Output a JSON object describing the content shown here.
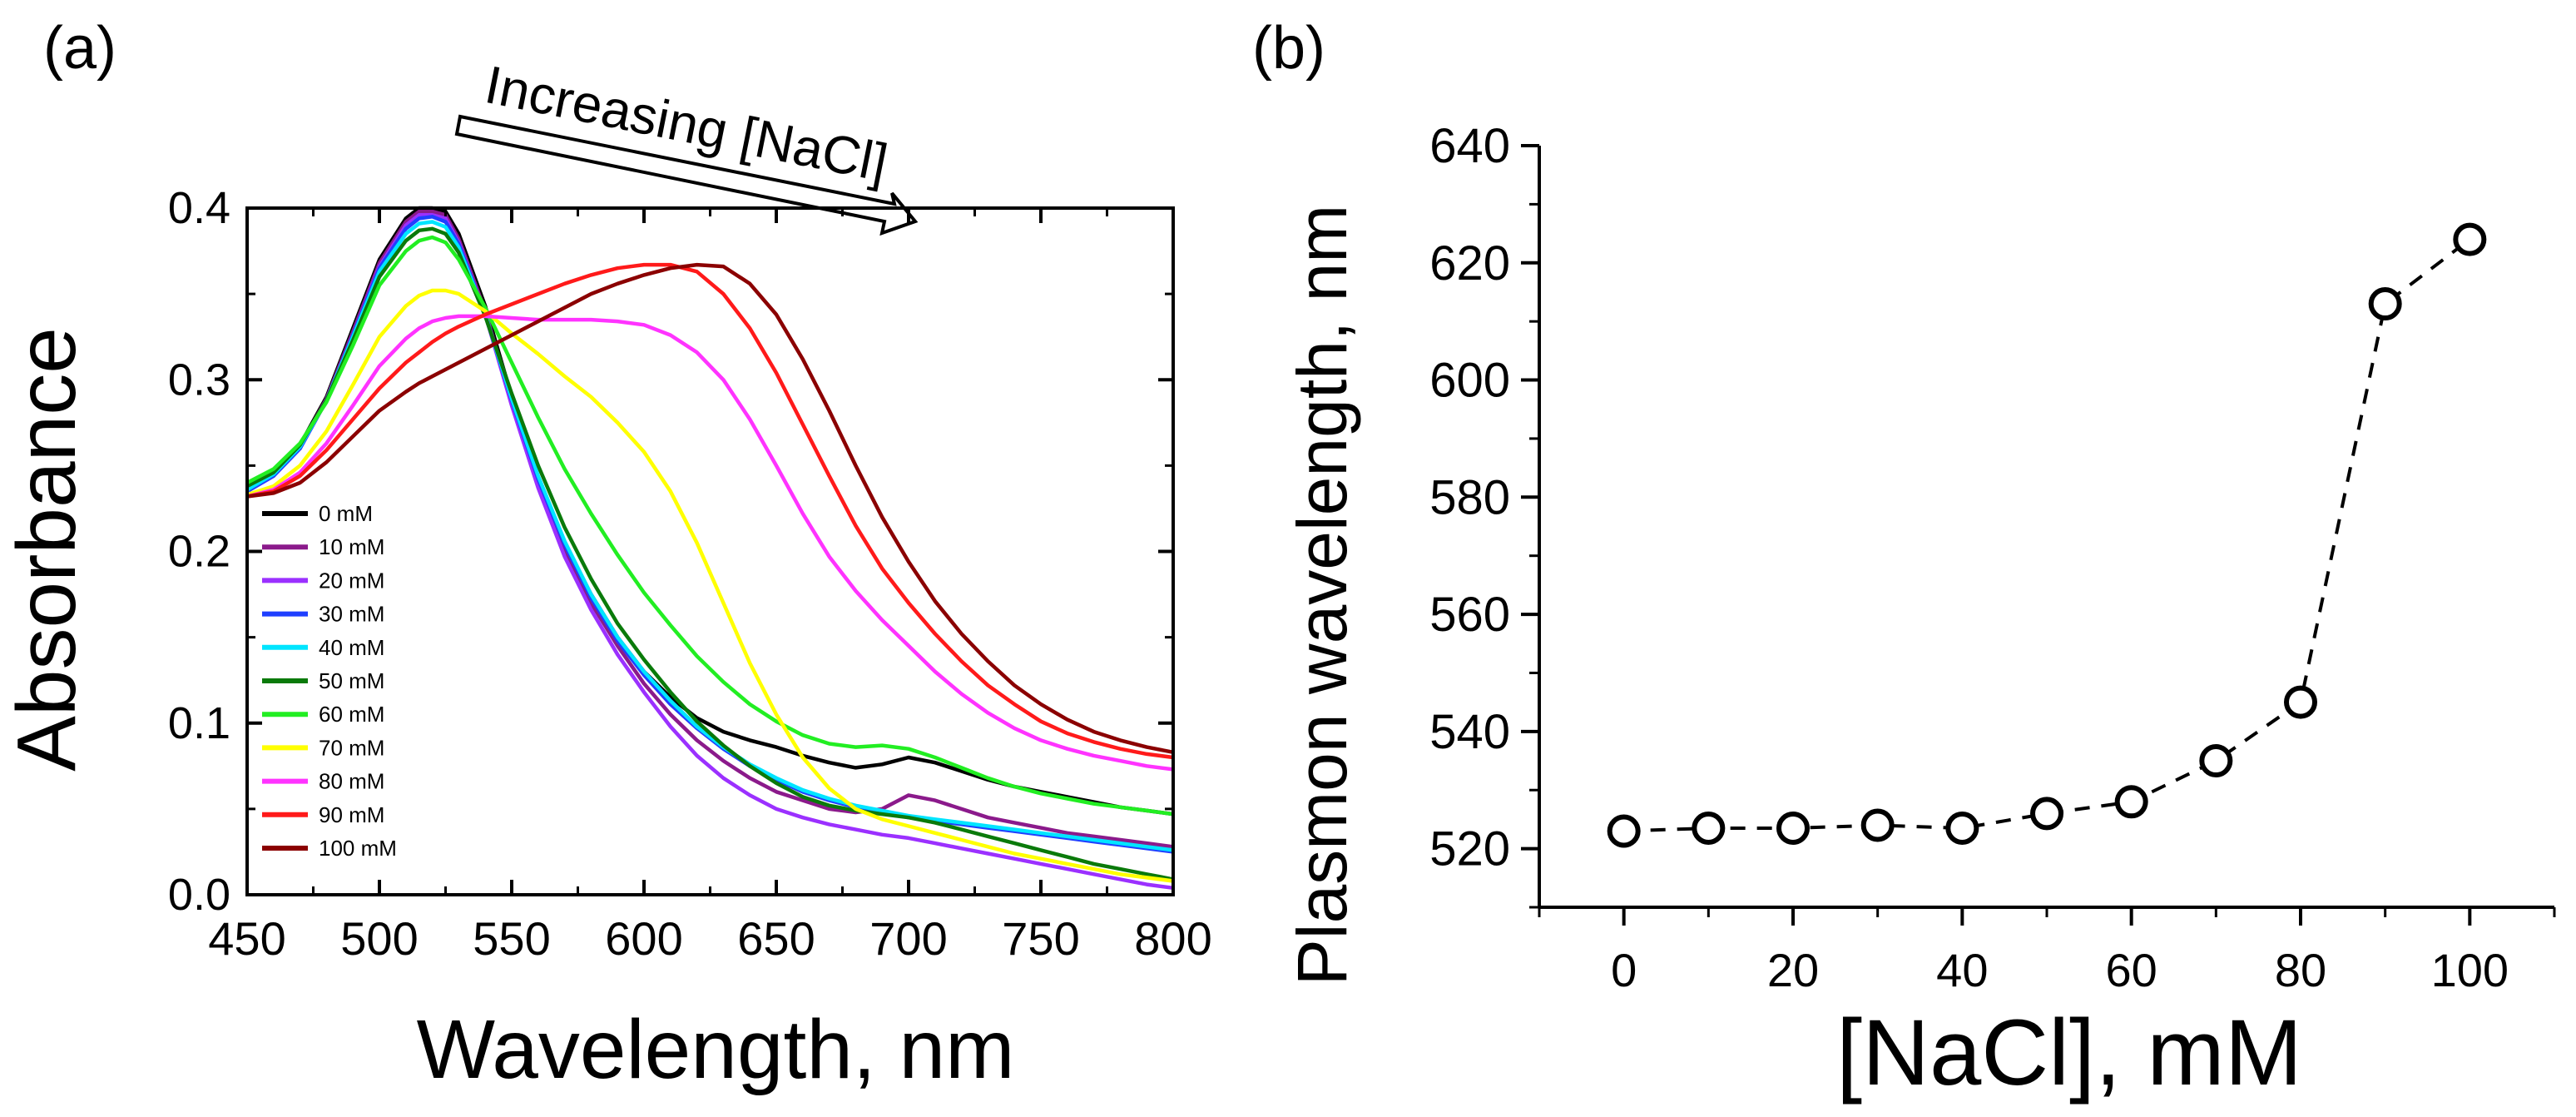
{
  "chart_data": [
    {
      "panel": "(a)",
      "type": "line",
      "title": "",
      "xlabel": "Wavelength, nm",
      "ylabel": "Absorbance",
      "xlim": [
        450,
        800
      ],
      "ylim": [
        0.0,
        0.4
      ],
      "xticks": [
        450,
        500,
        550,
        600,
        650,
        700,
        750,
        800
      ],
      "yticks": [
        "0.0",
        "0.1",
        "0.2",
        "0.3",
        "0.4"
      ],
      "grid": false,
      "legend_position": "bottom-left",
      "annotation": "Increasing [NaCl]",
      "x": [
        450,
        460,
        470,
        480,
        490,
        500,
        510,
        515,
        520,
        525,
        530,
        540,
        550,
        560,
        570,
        580,
        590,
        600,
        610,
        620,
        630,
        640,
        650,
        660,
        670,
        680,
        690,
        700,
        710,
        720,
        730,
        740,
        750,
        760,
        770,
        780,
        790,
        800
      ],
      "series": [
        {
          "name": "0 mM",
          "color": "#000000",
          "values": [
            0.235,
            0.245,
            0.262,
            0.29,
            0.33,
            0.37,
            0.394,
            0.4,
            0.4,
            0.398,
            0.385,
            0.343,
            0.29,
            0.243,
            0.205,
            0.175,
            0.15,
            0.13,
            0.115,
            0.103,
            0.095,
            0.09,
            0.086,
            0.081,
            0.077,
            0.074,
            0.076,
            0.08,
            0.077,
            0.072,
            0.067,
            0.063,
            0.06,
            0.057,
            0.054,
            0.051,
            0.049,
            0.047
          ]
        },
        {
          "name": "10 mM",
          "color": "#8b1a8b",
          "values": [
            0.235,
            0.244,
            0.261,
            0.289,
            0.328,
            0.368,
            0.392,
            0.398,
            0.398,
            0.396,
            0.382,
            0.34,
            0.287,
            0.24,
            0.2,
            0.17,
            0.145,
            0.123,
            0.105,
            0.09,
            0.078,
            0.068,
            0.06,
            0.055,
            0.05,
            0.048,
            0.05,
            0.058,
            0.055,
            0.05,
            0.045,
            0.042,
            0.039,
            0.036,
            0.034,
            0.032,
            0.03,
            0.028
          ]
        },
        {
          "name": "20 mM",
          "color": "#9b30ff",
          "values": [
            0.235,
            0.244,
            0.26,
            0.288,
            0.326,
            0.366,
            0.39,
            0.396,
            0.396,
            0.394,
            0.38,
            0.338,
            0.285,
            0.237,
            0.197,
            0.166,
            0.14,
            0.118,
            0.098,
            0.081,
            0.068,
            0.058,
            0.05,
            0.045,
            0.041,
            0.038,
            0.035,
            0.033,
            0.03,
            0.027,
            0.024,
            0.021,
            0.018,
            0.015,
            0.012,
            0.009,
            0.006,
            0.004
          ]
        },
        {
          "name": "30 mM",
          "color": "#1f3fff",
          "values": [
            0.235,
            0.244,
            0.26,
            0.288,
            0.326,
            0.365,
            0.388,
            0.394,
            0.395,
            0.392,
            0.379,
            0.338,
            0.288,
            0.242,
            0.204,
            0.173,
            0.148,
            0.128,
            0.111,
            0.097,
            0.085,
            0.075,
            0.067,
            0.06,
            0.055,
            0.051,
            0.048,
            0.045,
            0.043,
            0.041,
            0.039,
            0.037,
            0.035,
            0.033,
            0.031,
            0.029,
            0.027,
            0.025
          ]
        },
        {
          "name": "40 mM",
          "color": "#00e5ff",
          "values": [
            0.236,
            0.245,
            0.261,
            0.288,
            0.325,
            0.363,
            0.385,
            0.391,
            0.392,
            0.389,
            0.377,
            0.338,
            0.289,
            0.244,
            0.206,
            0.175,
            0.15,
            0.13,
            0.113,
            0.098,
            0.086,
            0.076,
            0.068,
            0.061,
            0.056,
            0.052,
            0.049,
            0.046,
            0.044,
            0.042,
            0.04,
            0.038,
            0.036,
            0.034,
            0.032,
            0.03,
            0.028,
            0.026
          ]
        },
        {
          "name": "50 mM",
          "color": "#0a7a0a",
          "values": [
            0.238,
            0.246,
            0.262,
            0.288,
            0.323,
            0.36,
            0.381,
            0.387,
            0.388,
            0.385,
            0.374,
            0.337,
            0.292,
            0.25,
            0.214,
            0.184,
            0.158,
            0.137,
            0.118,
            0.101,
            0.087,
            0.075,
            0.065,
            0.057,
            0.052,
            0.049,
            0.047,
            0.045,
            0.042,
            0.038,
            0.034,
            0.03,
            0.026,
            0.022,
            0.018,
            0.015,
            0.012,
            0.009
          ]
        },
        {
          "name": "60 mM",
          "color": "#22ee22",
          "values": [
            0.24,
            0.248,
            0.263,
            0.287,
            0.32,
            0.355,
            0.375,
            0.381,
            0.383,
            0.38,
            0.37,
            0.342,
            0.31,
            0.278,
            0.248,
            0.222,
            0.198,
            0.176,
            0.157,
            0.139,
            0.124,
            0.111,
            0.101,
            0.093,
            0.088,
            0.086,
            0.087,
            0.085,
            0.08,
            0.074,
            0.068,
            0.063,
            0.059,
            0.056,
            0.053,
            0.051,
            0.049,
            0.047
          ]
        },
        {
          "name": "70 mM",
          "color": "#ffff00",
          "values": [
            0.233,
            0.238,
            0.25,
            0.27,
            0.297,
            0.325,
            0.343,
            0.349,
            0.352,
            0.352,
            0.35,
            0.34,
            0.327,
            0.315,
            0.302,
            0.29,
            0.275,
            0.258,
            0.235,
            0.205,
            0.17,
            0.135,
            0.105,
            0.08,
            0.062,
            0.05,
            0.044,
            0.04,
            0.036,
            0.032,
            0.028,
            0.024,
            0.021,
            0.018,
            0.015,
            0.012,
            0.01,
            0.008
          ]
        },
        {
          "name": "80 mM",
          "color": "#ff33ff",
          "values": [
            0.232,
            0.236,
            0.246,
            0.263,
            0.285,
            0.308,
            0.324,
            0.33,
            0.334,
            0.336,
            0.337,
            0.337,
            0.336,
            0.335,
            0.335,
            0.335,
            0.334,
            0.332,
            0.326,
            0.316,
            0.3,
            0.277,
            0.25,
            0.222,
            0.197,
            0.177,
            0.16,
            0.145,
            0.13,
            0.117,
            0.106,
            0.097,
            0.09,
            0.085,
            0.081,
            0.078,
            0.075,
            0.073
          ]
        },
        {
          "name": "90 mM",
          "color": "#ff1a1a",
          "values": [
            0.232,
            0.235,
            0.244,
            0.259,
            0.277,
            0.295,
            0.31,
            0.316,
            0.322,
            0.327,
            0.331,
            0.338,
            0.344,
            0.35,
            0.356,
            0.361,
            0.365,
            0.367,
            0.367,
            0.363,
            0.35,
            0.33,
            0.304,
            0.274,
            0.244,
            0.215,
            0.19,
            0.17,
            0.152,
            0.136,
            0.122,
            0.111,
            0.101,
            0.094,
            0.089,
            0.085,
            0.082,
            0.08
          ]
        },
        {
          "name": "100 mM",
          "color": "#8b0000",
          "values": [
            0.232,
            0.234,
            0.24,
            0.252,
            0.267,
            0.282,
            0.293,
            0.298,
            0.302,
            0.306,
            0.31,
            0.318,
            0.326,
            0.334,
            0.342,
            0.35,
            0.356,
            0.361,
            0.365,
            0.367,
            0.366,
            0.356,
            0.338,
            0.312,
            0.282,
            0.25,
            0.22,
            0.194,
            0.171,
            0.152,
            0.136,
            0.122,
            0.111,
            0.102,
            0.095,
            0.09,
            0.086,
            0.083
          ]
        }
      ]
    },
    {
      "panel": "(b)",
      "type": "scatter",
      "title": "",
      "xlabel": "[NaCl], mM",
      "ylabel": "Plasmon wavelength, nm",
      "xlim": [
        -10,
        110
      ],
      "ylim": [
        510,
        640
      ],
      "xticks": [
        0,
        20,
        40,
        60,
        80,
        100
      ],
      "yticks": [
        520,
        540,
        560,
        580,
        600,
        620,
        640
      ],
      "grid": false,
      "line_style": "dashed",
      "marker": "open-circle",
      "x": [
        0,
        10,
        20,
        30,
        40,
        50,
        60,
        70,
        80,
        90,
        100
      ],
      "y": [
        523,
        523.5,
        523.5,
        524,
        523.5,
        526,
        528,
        535,
        545,
        613,
        624
      ]
    }
  ]
}
